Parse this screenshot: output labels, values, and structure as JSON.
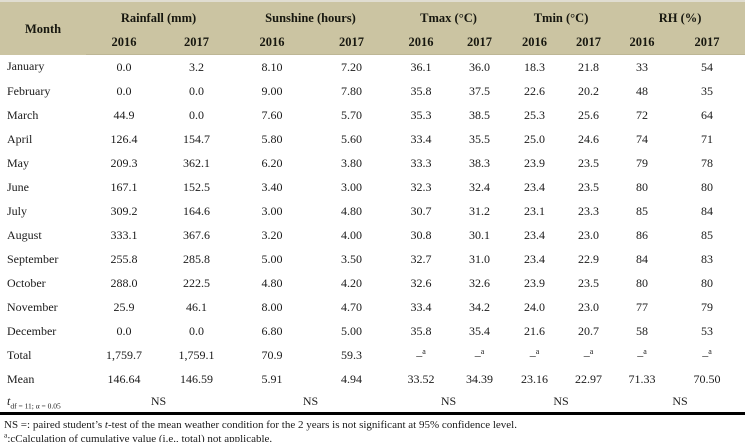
{
  "header": {
    "month_label": "Month",
    "groups": [
      {
        "label": "Rainfall (mm)",
        "years": [
          "2016",
          "2017"
        ]
      },
      {
        "label": "Sunshine (hours)",
        "years": [
          "2016",
          "2017"
        ]
      },
      {
        "label": "Tmax (°C)",
        "years": [
          "2016",
          "2017"
        ]
      },
      {
        "label": "Tmin (°C)",
        "years": [
          "2016",
          "2017"
        ]
      },
      {
        "label": "RH (%)",
        "years": [
          "2016",
          "2017"
        ]
      }
    ]
  },
  "rows": [
    {
      "month": "January",
      "values": [
        "0.0",
        "3.2",
        "8.10",
        "7.20",
        "36.1",
        "36.0",
        "18.3",
        "21.8",
        "33",
        "54"
      ]
    },
    {
      "month": "February",
      "values": [
        "0.0",
        "0.0",
        "9.00",
        "7.80",
        "35.8",
        "37.5",
        "22.6",
        "20.2",
        "48",
        "35"
      ]
    },
    {
      "month": "March",
      "values": [
        "44.9",
        "0.0",
        "7.60",
        "5.70",
        "35.3",
        "38.5",
        "25.3",
        "25.6",
        "72",
        "64"
      ]
    },
    {
      "month": "April",
      "values": [
        "126.4",
        "154.7",
        "5.80",
        "5.60",
        "33.4",
        "35.5",
        "25.0",
        "24.6",
        "74",
        "71"
      ]
    },
    {
      "month": "May",
      "values": [
        "209.3",
        "362.1",
        "6.20",
        "3.80",
        "33.3",
        "38.3",
        "23.9",
        "23.5",
        "79",
        "78"
      ]
    },
    {
      "month": "June",
      "values": [
        "167.1",
        "152.5",
        "3.40",
        "3.00",
        "32.3",
        "32.4",
        "23.4",
        "23.5",
        "80",
        "80"
      ]
    },
    {
      "month": "July",
      "values": [
        "309.2",
        "164.6",
        "3.00",
        "4.80",
        "30.7",
        "31.2",
        "23.1",
        "23.3",
        "85",
        "84"
      ]
    },
    {
      "month": "August",
      "values": [
        "333.1",
        "367.6",
        "3.20",
        "4.00",
        "30.8",
        "30.1",
        "23.4",
        "23.0",
        "86",
        "85"
      ]
    },
    {
      "month": "September",
      "values": [
        "255.8",
        "285.8",
        "5.00",
        "3.50",
        "32.7",
        "31.0",
        "23.4",
        "22.9",
        "84",
        "83"
      ]
    },
    {
      "month": "October",
      "values": [
        "288.0",
        "222.5",
        "4.80",
        "4.20",
        "32.6",
        "32.6",
        "23.9",
        "23.5",
        "80",
        "80"
      ]
    },
    {
      "month": "November",
      "values": [
        "25.9",
        "46.1",
        "8.00",
        "4.70",
        "33.4",
        "34.2",
        "24.0",
        "23.0",
        "77",
        "79"
      ]
    },
    {
      "month": "December",
      "values": [
        "0.0",
        "0.0",
        "6.80",
        "5.00",
        "35.8",
        "35.4",
        "21.6",
        "20.7",
        "58",
        "53"
      ]
    },
    {
      "month": "Total",
      "values": [
        "1,759.7",
        "1,759.1",
        "70.9",
        "59.3",
        "–^a",
        "–^a",
        "–^a",
        "–^a",
        "–^a",
        "–^a"
      ]
    },
    {
      "month": "Mean",
      "values": [
        "146.64",
        "146.59",
        "5.91",
        "4.94",
        "33.52",
        "34.39",
        "23.16",
        "22.97",
        "71.33",
        "70.50"
      ]
    }
  ],
  "t_row": {
    "label_main": "t",
    "label_sub": "df = 11; α = 0.05",
    "values": [
      "NS",
      "NS",
      "NS",
      "NS",
      "NS"
    ]
  },
  "footnotes": {
    "line1_pre": "NS =: paired student’s ",
    "line1_italic": "t",
    "line1_post": "-test of the mean weather condition for the 2 years is not significant at 95% confidence level.",
    "line2_sup": "a",
    "line2_text": ":cCalculation of cumulative value (i.e., total) not applicable."
  },
  "colors": {
    "header_bg": "#cbc4a2",
    "rule": "#000000"
  }
}
